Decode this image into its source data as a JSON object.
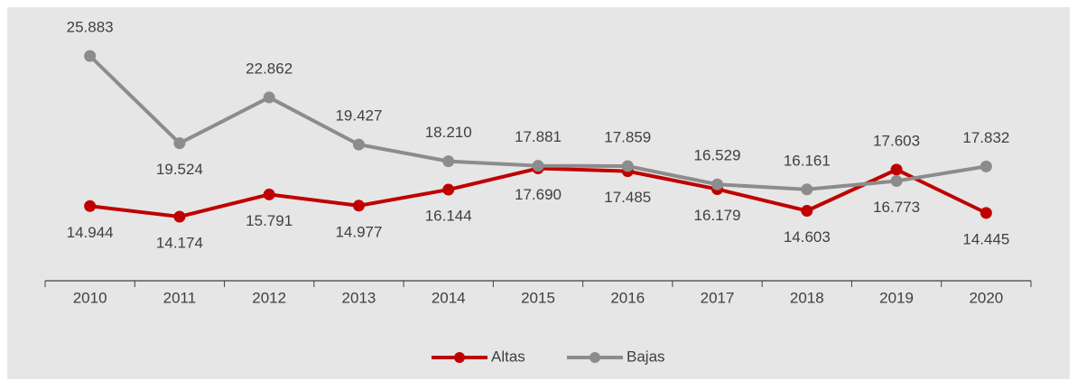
{
  "chart_data": {
    "type": "line",
    "categories": [
      "2010",
      "2011",
      "2012",
      "2013",
      "2014",
      "2015",
      "2016",
      "2017",
      "2018",
      "2019",
      "2020"
    ],
    "series": [
      {
        "name": "Altas",
        "color": "#c00000",
        "values": [
          14944,
          14174,
          15791,
          14977,
          16144,
          17690,
          17485,
          16179,
          14603,
          17603,
          14445
        ],
        "value_labels": [
          "14.944",
          "14.174",
          "15.791",
          "14.977",
          "16.144",
          "17.690",
          "17.485",
          "16.179",
          "14.603",
          "17.603",
          "14.445"
        ]
      },
      {
        "name": "Bajas",
        "color": "#8c8c8c",
        "values": [
          25883,
          19524,
          22862,
          19427,
          18210,
          17881,
          17859,
          16529,
          16161,
          16773,
          17832
        ],
        "value_labels": [
          "25.883",
          "19.524",
          "22.862",
          "19.427",
          "18.210",
          "17.881",
          "17.859",
          "16.529",
          "16.161",
          "16.773",
          "17.832"
        ]
      }
    ],
    "legend": "bottom"
  }
}
